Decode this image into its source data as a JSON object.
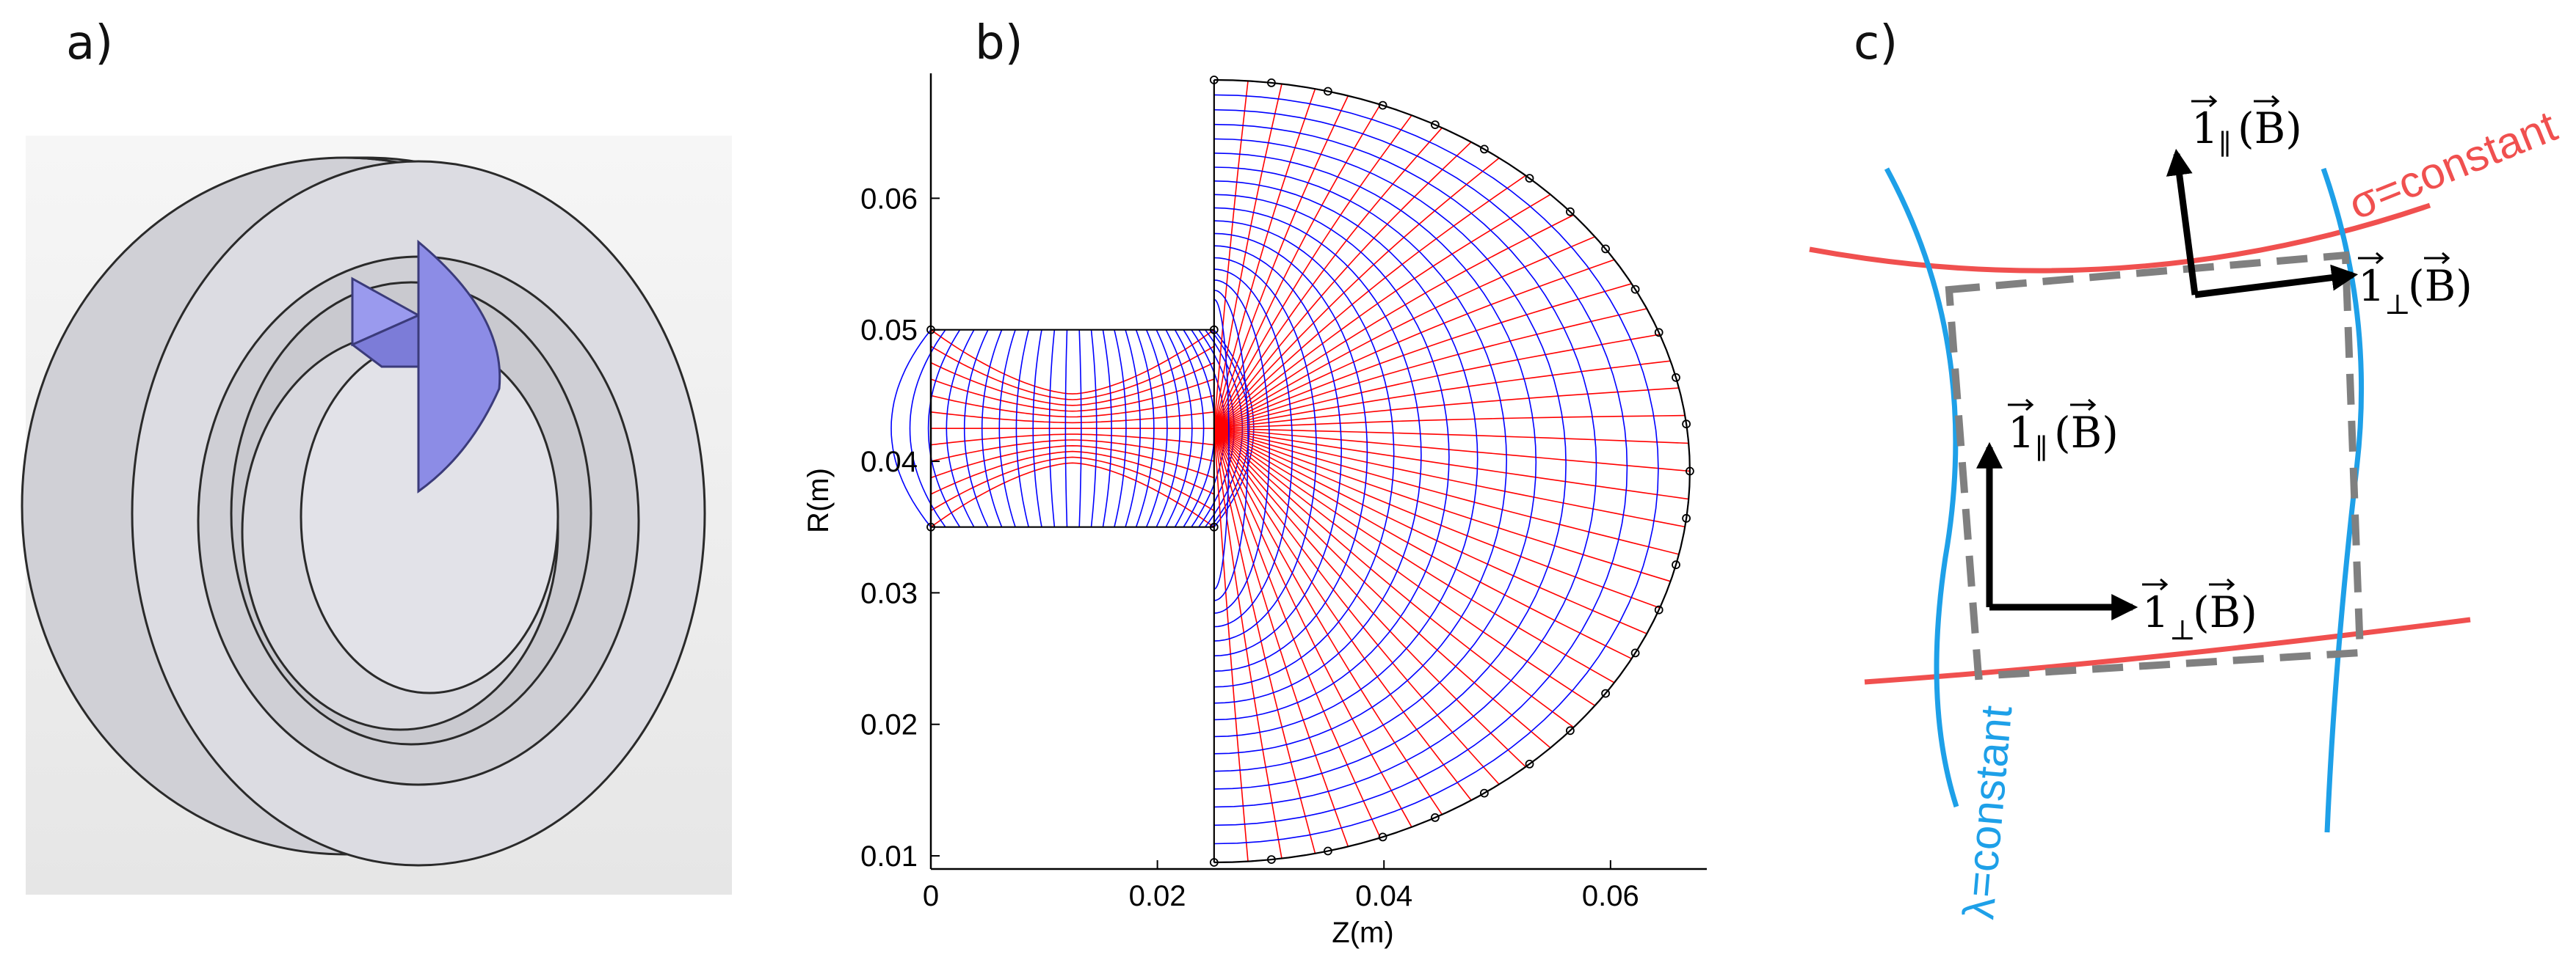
{
  "panels": {
    "a": {
      "label": "a)"
    },
    "b": {
      "label": "b)"
    },
    "c": {
      "label": "c)"
    }
  },
  "mesh": {
    "xlabel": "Z(m)",
    "ylabel": "R(m)",
    "xticks": [
      "0",
      "0.02",
      "0.04",
      "0.06"
    ],
    "yticks": [
      "0.01",
      "0.02",
      "0.03",
      "0.04",
      "0.05",
      "0.06"
    ],
    "xticks_values": [
      0,
      0.02,
      0.04,
      0.06
    ],
    "yticks_values": [
      0.01,
      0.02,
      0.03,
      0.04,
      0.05,
      0.06
    ],
    "xlim": [
      0,
      0.0685
    ],
    "ylim": [
      0.009,
      0.0695
    ],
    "channel": {
      "z": [
        0,
        0.025
      ],
      "r": [
        0.035,
        0.05
      ]
    },
    "dome": {
      "z0": 0.025,
      "r": [
        0.0095,
        0.069
      ],
      "z_max": 0.067
    },
    "colors": {
      "family_a": "#0000ff",
      "family_b": "#ff0000",
      "boundary": "#000000"
    }
  },
  "schematic": {
    "sigma_label": "σ=constant",
    "lambda_label": "λ=constant",
    "vec_main": "1",
    "sub_parallel": "∥",
    "sub_perp": "⊥",
    "field_arg": "(B)",
    "field_symbol": "B",
    "colors": {
      "sigma": "#f0504f",
      "lambda": "#1ea0e8",
      "dash": "#808080",
      "arrow": "#000000"
    }
  },
  "colors": {
    "ring_fill": "#d2d2d8",
    "ring_inner": "#c4c4c9",
    "wedge": "#8c8ce6",
    "background": "#eeeeee"
  }
}
